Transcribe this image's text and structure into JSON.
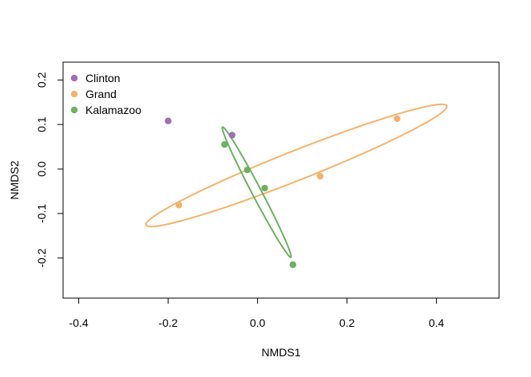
{
  "chart_data": {
    "type": "scatter",
    "xlabel": "NMDS1",
    "ylabel": "NMDS2",
    "xlim": [
      -0.435,
      0.54
    ],
    "ylim": [
      -0.29,
      0.24
    ],
    "xticks": [
      {
        "value": -0.4,
        "label": "-0.4"
      },
      {
        "value": -0.2,
        "label": "-0.2"
      },
      {
        "value": 0.0,
        "label": "0.0"
      },
      {
        "value": 0.2,
        "label": "0.2"
      },
      {
        "value": 0.4,
        "label": "0.4"
      }
    ],
    "yticks": [
      {
        "value": -0.2,
        "label": "-0.2"
      },
      {
        "value": -0.1,
        "label": "-0.1"
      },
      {
        "value": 0.0,
        "label": "0.0"
      },
      {
        "value": 0.1,
        "label": "0.1"
      },
      {
        "value": 0.2,
        "label": "0.2"
      }
    ],
    "grid": false,
    "legend_position": "top-left",
    "series": [
      {
        "name": "Clinton",
        "color": "#9e6fb5",
        "points": [
          {
            "x": -0.2,
            "y": 0.108
          },
          {
            "x": -0.057,
            "y": 0.076
          }
        ],
        "ellipse": null
      },
      {
        "name": "Grand",
        "color": "#f5b26b",
        "points": [
          {
            "x": -0.176,
            "y": -0.081
          },
          {
            "x": 0.14,
            "y": -0.016
          },
          {
            "x": 0.312,
            "y": 0.113
          }
        ],
        "ellipse": {
          "cx": 0.087,
          "cy": 0.008,
          "a": 0.362,
          "b": 0.033,
          "angle_deg": 21.7
        }
      },
      {
        "name": "Kalamazoo",
        "color": "#6db062",
        "points": [
          {
            "x": -0.074,
            "y": 0.055
          },
          {
            "x": -0.023,
            "y": -0.002
          },
          {
            "x": 0.016,
            "y": -0.043
          },
          {
            "x": 0.079,
            "y": -0.215
          }
        ],
        "ellipse": {
          "cx": -0.002,
          "cy": -0.052,
          "a": 0.165,
          "b": 0.0105,
          "angle_deg": -62.4
        }
      }
    ]
  }
}
